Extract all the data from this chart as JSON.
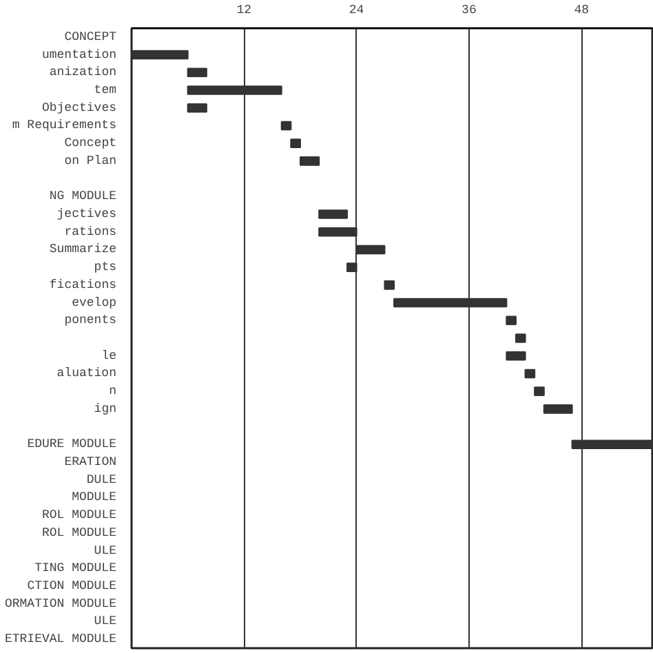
{
  "chart_data": {
    "type": "bar",
    "orientation": "horizontal",
    "categories": [
      "CONCEPT",
      "umentation",
      "anization",
      "tem",
      "Objectives",
      "m Requirements",
      "Concept",
      "on Plan",
      null,
      "NG MODULE",
      "jectives",
      "rations",
      "Summarize",
      "pts",
      "fications",
      "evelop",
      "ponents",
      null,
      "le",
      "aluation",
      "n",
      "ign",
      null,
      "EDURE MODULE",
      "ERATION",
      "DULE",
      "MODULE",
      "ROL MODULE",
      "ROL MODULE",
      "ULE",
      "TING MODULE",
      "CTION MODULE",
      "ORMATION MODULE",
      "ULE",
      "ETRIEVAL MODULE"
    ],
    "base": [
      null,
      0,
      6,
      6,
      6,
      16,
      17,
      18,
      null,
      null,
      20,
      20,
      24,
      23,
      27,
      28,
      40,
      41,
      40,
      42,
      43,
      44,
      null,
      47,
      null,
      null,
      null,
      null,
      null,
      null,
      null,
      null,
      null,
      null,
      null
    ],
    "values": [
      null,
      6,
      2,
      10,
      2,
      1,
      1,
      2,
      null,
      null,
      3,
      4,
      3,
      1,
      1,
      12,
      1,
      1,
      2,
      1,
      1,
      3,
      null,
      8.7,
      null,
      null,
      null,
      null,
      null,
      null,
      null,
      null,
      null,
      null,
      null
    ],
    "color": "#333333",
    "xlim": [
      0,
      55.7
    ],
    "xticks": [
      {
        "value": 0,
        "label": null
      },
      12,
      24,
      36,
      48
    ],
    "grid": "x"
  }
}
